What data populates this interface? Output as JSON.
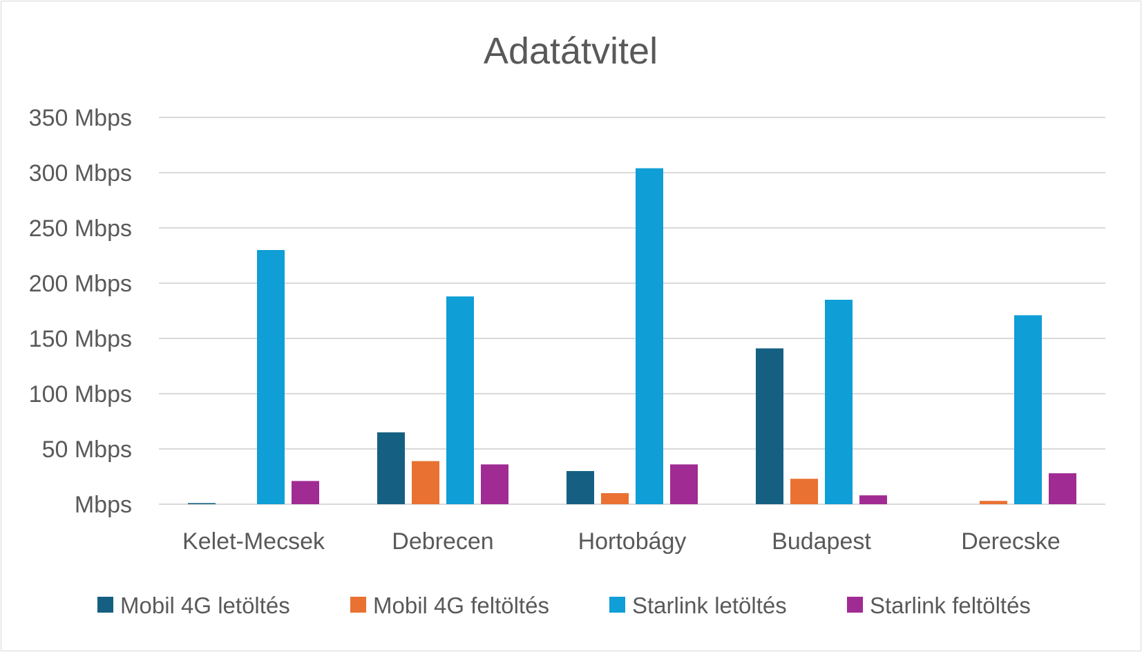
{
  "chart_data": {
    "type": "bar",
    "title": "Adatátvitel",
    "xlabel": "",
    "ylabel": "",
    "ylim": [
      0,
      350
    ],
    "yticks": [
      {
        "value": 0,
        "label": "Mbps"
      },
      {
        "value": 50,
        "label": "50 Mbps"
      },
      {
        "value": 100,
        "label": "100 Mbps"
      },
      {
        "value": 150,
        "label": "150 Mbps"
      },
      {
        "value": 200,
        "label": "200 Mbps"
      },
      {
        "value": 250,
        "label": "250 Mbps"
      },
      {
        "value": 300,
        "label": "300 Mbps"
      },
      {
        "value": 350,
        "label": "350 Mbps"
      }
    ],
    "grid": true,
    "legend_position": "bottom",
    "categories": [
      "Kelet-Mecsek",
      "Debrecen",
      "Hortobágy",
      "Budapest",
      "Derecske"
    ],
    "series": [
      {
        "name": "Mobil 4G letöltés",
        "color": "#156082",
        "values": [
          1,
          65,
          30,
          141,
          0
        ]
      },
      {
        "name": "Mobil 4G feltöltés",
        "color": "#E97132",
        "values": [
          0,
          39,
          10,
          23,
          3
        ]
      },
      {
        "name": "Starlink letöltés",
        "color": "#0F9ED5",
        "values": [
          230,
          188,
          304,
          185,
          171
        ]
      },
      {
        "name": "Starlink feltöltés",
        "color": "#A02B93",
        "values": [
          21,
          36,
          36,
          8,
          28
        ]
      }
    ]
  }
}
